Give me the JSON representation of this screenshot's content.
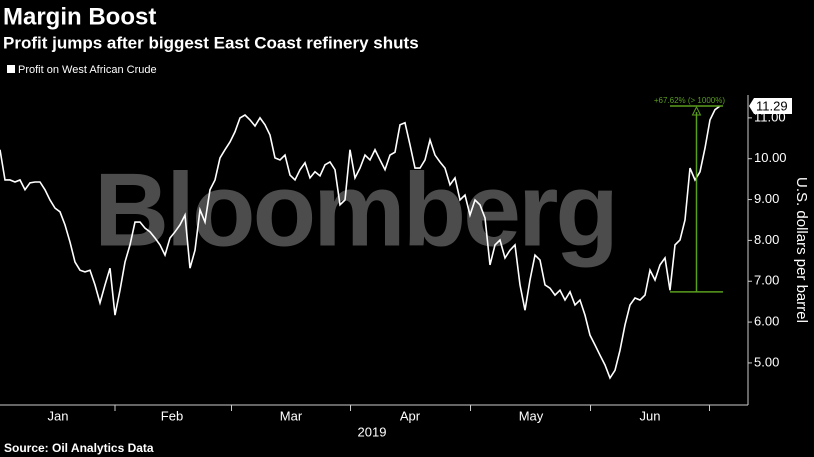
{
  "chart_data": {
    "type": "line",
    "title": "Margin Boost",
    "subtitle": "Profit jumps after biggest East Coast refinery shuts",
    "source": "Source: Oil Analytics Data",
    "watermark": "Bloomberg",
    "y_label": "U.S. dollars per barrel",
    "x_label": "2019",
    "xlim": [
      0,
      149.6
    ],
    "xticks": [
      {
        "value": 11.6,
        "label": "Jan"
      },
      {
        "value": 34.4,
        "label": "Feb"
      },
      {
        "value": 58.2,
        "label": "Mar"
      },
      {
        "value": 82,
        "label": "Apr"
      },
      {
        "value": 106.2,
        "label": "May"
      },
      {
        "value": 130,
        "label": "Jun"
      }
    ],
    "ylim": [
      3.97,
      11.56
    ],
    "yticks": [
      {
        "value": 5,
        "label": "5.00"
      },
      {
        "value": 6,
        "label": "6.00"
      },
      {
        "value": 7,
        "label": "7.00"
      },
      {
        "value": 8,
        "label": "8.00"
      },
      {
        "value": 9,
        "label": "9.00"
      },
      {
        "value": 10,
        "label": "10.00"
      },
      {
        "value": 11,
        "label": "11.00"
      }
    ],
    "series": [
      {
        "name": "Profit on West African Crude",
        "color": "#ffffff",
        "values": [
          10.22,
          9.48,
          9.48,
          9.43,
          9.48,
          9.24,
          9.41,
          9.43,
          9.43,
          9.24,
          8.99,
          8.79,
          8.7,
          8.38,
          7.96,
          7.47,
          7.27,
          7.23,
          7.27,
          6.91,
          6.47,
          6.91,
          7.32,
          6.17,
          6.78,
          7.47,
          7.89,
          8.45,
          8.45,
          8.3,
          8.21,
          8.06,
          7.89,
          7.64,
          8.06,
          8.21,
          8.38,
          8.62,
          7.32,
          7.76,
          8.75,
          8.45,
          9.24,
          9.48,
          10.02,
          10.22,
          10.41,
          10.66,
          11.0,
          11.07,
          10.95,
          10.8,
          11.0,
          10.83,
          10.58,
          10.02,
          9.97,
          10.09,
          9.6,
          9.48,
          9.73,
          9.9,
          9.53,
          9.68,
          9.58,
          9.85,
          9.92,
          9.73,
          8.87,
          8.99,
          10.22,
          9.53,
          9.77,
          10.09,
          9.97,
          10.22,
          9.97,
          9.73,
          10.09,
          10.16,
          10.83,
          10.88,
          10.34,
          9.77,
          9.77,
          9.97,
          10.46,
          10.09,
          9.92,
          9.77,
          9.36,
          9.53,
          8.99,
          9.11,
          8.62,
          8.99,
          8.87,
          8.55,
          7.4,
          7.89,
          8.01,
          7.57,
          7.76,
          7.89,
          6.91,
          6.29,
          7.03,
          7.64,
          7.52,
          6.91,
          6.83,
          6.66,
          6.78,
          6.54,
          6.74,
          6.42,
          6.54,
          6.17,
          5.68,
          5.44,
          5.19,
          4.95,
          4.63,
          4.82,
          5.31,
          5.93,
          6.42,
          6.59,
          6.54,
          6.66,
          7.27,
          7.03,
          7.4,
          7.57,
          6.78,
          7.89,
          8.01,
          8.5,
          9.77,
          9.48,
          9.68,
          10.26,
          10.95,
          11.2,
          11.29
        ]
      }
    ],
    "annotation": {
      "text": "+67.62% (> 1000%)",
      "low": 6.74,
      "high": 11.29,
      "color": "#5a9e1e"
    }
  }
}
